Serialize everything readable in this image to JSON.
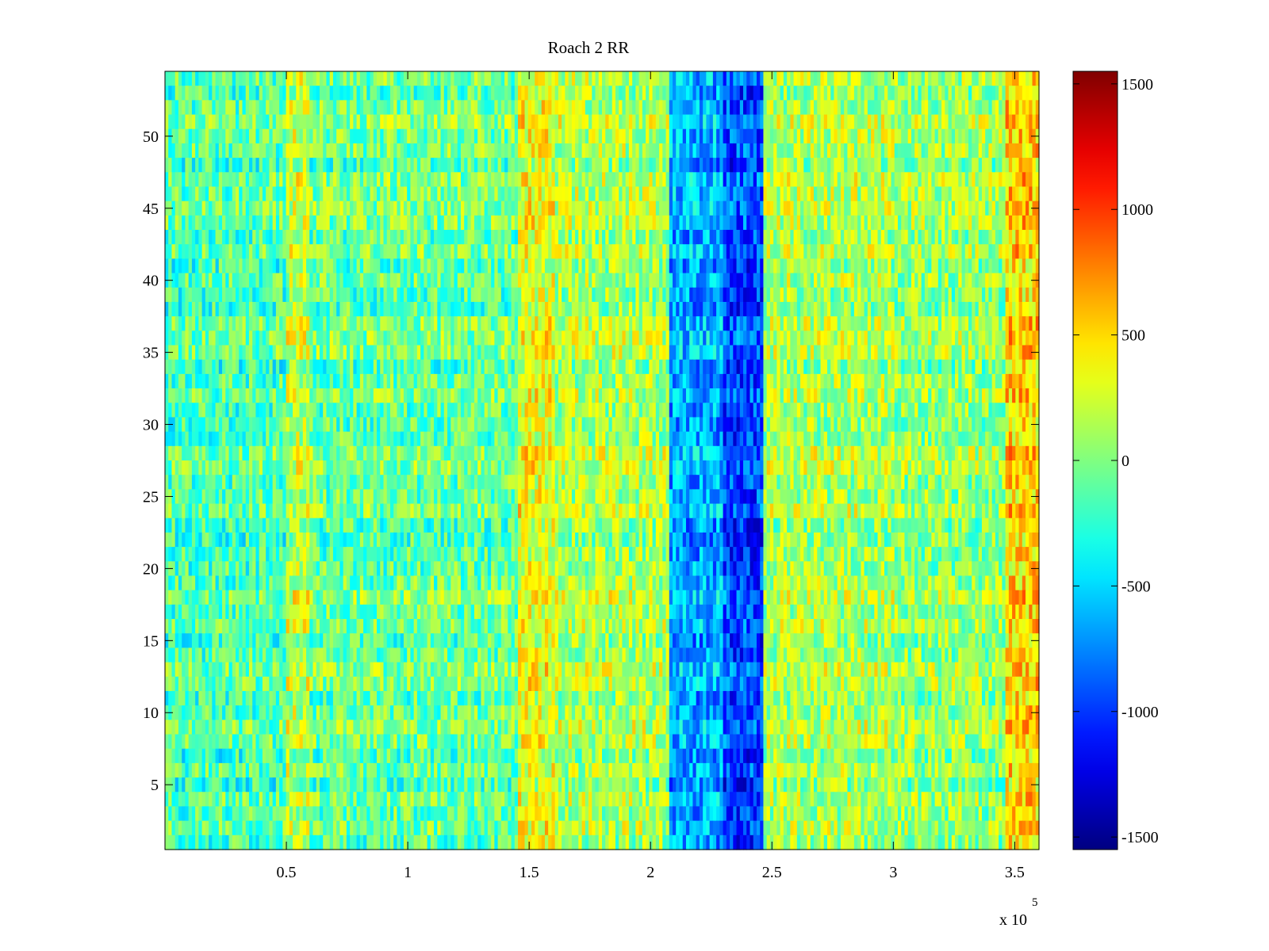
{
  "chart_data": {
    "type": "heatmap",
    "title": "Roach 2 RR",
    "xlabel": "",
    "ylabel": "",
    "colormap": "jet",
    "x_exponent_label": "x 10",
    "x_exponent": "5",
    "xlim": [
      0,
      360000
    ],
    "ylim": [
      0.5,
      54.5
    ],
    "clim": [
      -1550,
      1550
    ],
    "rows": 54,
    "x_ticks": [
      {
        "value": 50000,
        "label": "0.5"
      },
      {
        "value": 100000,
        "label": "1"
      },
      {
        "value": 150000,
        "label": "1.5"
      },
      {
        "value": 200000,
        "label": "2"
      },
      {
        "value": 250000,
        "label": "2.5"
      },
      {
        "value": 300000,
        "label": "3"
      },
      {
        "value": 350000,
        "label": "3.5"
      }
    ],
    "y_ticks": [
      {
        "value": 5,
        "label": "5"
      },
      {
        "value": 10,
        "label": "10"
      },
      {
        "value": 15,
        "label": "15"
      },
      {
        "value": 20,
        "label": "20"
      },
      {
        "value": 25,
        "label": "25"
      },
      {
        "value": 30,
        "label": "30"
      },
      {
        "value": 35,
        "label": "35"
      },
      {
        "value": 40,
        "label": "40"
      },
      {
        "value": 45,
        "label": "45"
      },
      {
        "value": 50,
        "label": "50"
      }
    ],
    "colorbar_ticks": [
      {
        "value": 1500,
        "label": "1500"
      },
      {
        "value": 1000,
        "label": "1000"
      },
      {
        "value": 500,
        "label": "500"
      },
      {
        "value": 0,
        "label": "0"
      },
      {
        "value": -500,
        "label": "-500"
      },
      {
        "value": -1000,
        "label": "-1000"
      },
      {
        "value": -1500,
        "label": "-1500"
      }
    ],
    "column_bands": [
      {
        "x_start": 0,
        "x_end": 50000,
        "mean": -150
      },
      {
        "x_start": 50000,
        "x_end": 60000,
        "mean": 180
      },
      {
        "x_start": 60000,
        "x_end": 146000,
        "mean": -80
      },
      {
        "x_start": 146000,
        "x_end": 160000,
        "mean": 320
      },
      {
        "x_start": 160000,
        "x_end": 208000,
        "mean": 120
      },
      {
        "x_start": 208000,
        "x_end": 230000,
        "mean": -650
      },
      {
        "x_start": 230000,
        "x_end": 247000,
        "mean": -950
      },
      {
        "x_start": 247000,
        "x_end": 300000,
        "mean": 120
      },
      {
        "x_start": 300000,
        "x_end": 346000,
        "mean": 50
      },
      {
        "x_start": 346000,
        "x_end": 360000,
        "mean": 500
      }
    ]
  }
}
